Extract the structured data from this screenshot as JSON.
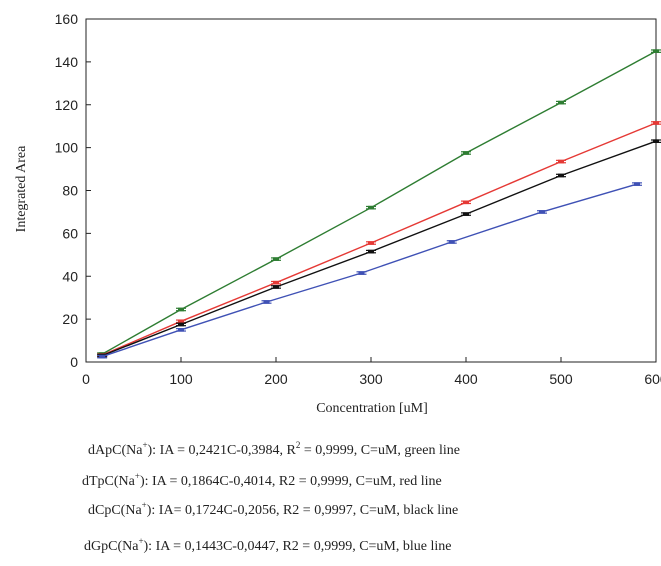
{
  "chart_data": {
    "type": "line",
    "xlabel": "Concentration [uM]",
    "ylabel": "Integrated Area",
    "xlim": [
      0,
      600
    ],
    "ylim": [
      0,
      160
    ],
    "xticks": [
      0,
      100,
      200,
      300,
      400,
      500,
      600
    ],
    "yticks": [
      0,
      20,
      40,
      60,
      80,
      100,
      120,
      140,
      160
    ],
    "grid": false,
    "legend": "none",
    "series": [
      {
        "color": "#2e7d32",
        "x": [
          17,
          100,
          200,
          300,
          400,
          500,
          600
        ],
        "y": [
          3.7,
          24.5,
          48,
          72,
          97.5,
          121,
          145
        ]
      },
      {
        "color": "#e53935",
        "x": [
          17,
          100,
          200,
          300,
          400,
          500,
          600
        ],
        "y": [
          3.2,
          19,
          37,
          55.5,
          74.5,
          93.5,
          111.5
        ]
      },
      {
        "color": "#111111",
        "x": [
          17,
          100,
          200,
          300,
          400,
          500,
          600
        ],
        "y": [
          3.0,
          17.5,
          35,
          51.5,
          69,
          87,
          103
        ]
      },
      {
        "color": "#3f51b5",
        "x": [
          17,
          100,
          190,
          290,
          385,
          480,
          580
        ],
        "y": [
          2.5,
          15,
          28,
          41.5,
          56,
          70,
          83
        ]
      }
    ]
  },
  "equations": [
    {
      "prefix": "dApC(Na",
      "sup": "+",
      "rest": "): IA = 0,2421C-0,3984, R",
      "sup2": "2",
      "rest2": " = 0,9999, C=uM, green line"
    },
    {
      "prefix": "dTpC(Na",
      "sup": "+",
      "rest": "): IA = 0,1864C-0,4014, R2 = 0,9999, C=uM, red line",
      "sup2": "",
      "rest2": ""
    },
    {
      "prefix": "dCpC(Na",
      "sup": "+",
      "rest": "):  IA= 0,1724C-0,2056, R2 = 0,9997, C=uM, black line",
      "sup2": "",
      "rest2": ""
    },
    {
      "prefix": "dGpC(Na",
      "sup": "+",
      "rest": "): IA = 0,1443C-0,0447, R2 = 0,9999, C=uM, blue line",
      "sup2": "",
      "rest2": ""
    }
  ]
}
